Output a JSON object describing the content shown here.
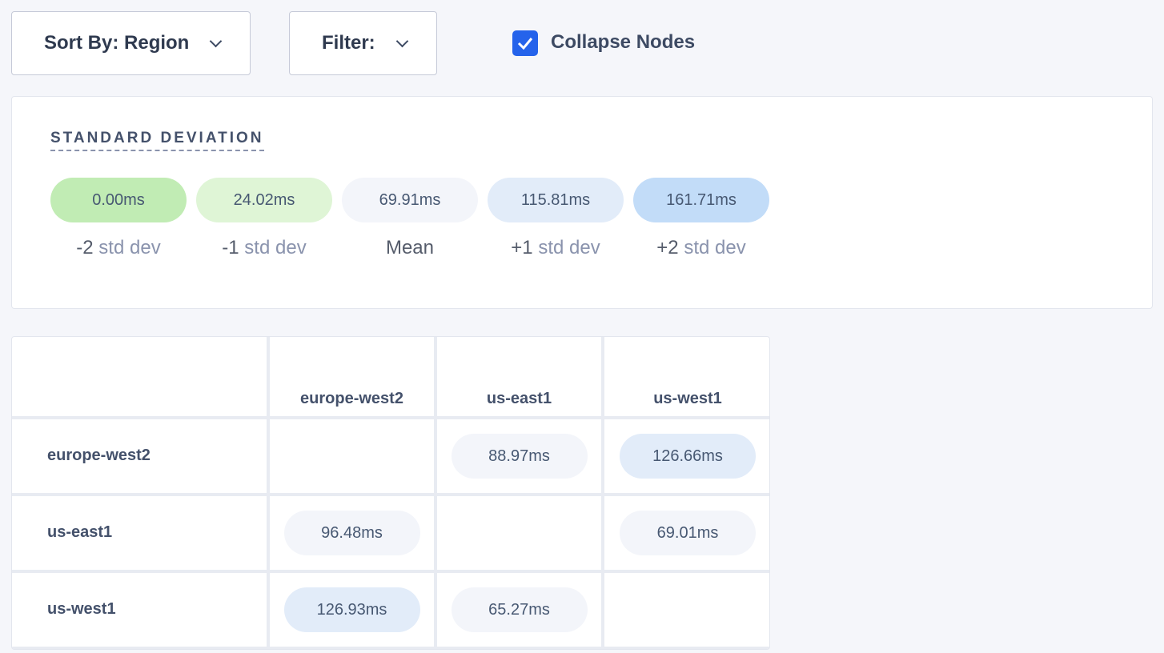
{
  "toolbar": {
    "sort_label": "Sort By: Region",
    "filter_label": "Filter:",
    "collapse_label": "Collapse Nodes",
    "collapse_checked": true
  },
  "std_dev": {
    "title": "STANDARD DEVIATION",
    "items": [
      {
        "value": "0.00ms",
        "prefix": "-2",
        "suffix": " std dev",
        "color": "#c1ecb4"
      },
      {
        "value": "24.02ms",
        "prefix": "-1",
        "suffix": " std dev",
        "color": "#dff5d6"
      },
      {
        "value": "69.91ms",
        "prefix": "Mean",
        "suffix": "",
        "color": "#f3f5fa"
      },
      {
        "value": "115.81ms",
        "prefix": "+1",
        "suffix": " std dev",
        "color": "#e2ecf9"
      },
      {
        "value": "161.71ms",
        "prefix": "+2",
        "suffix": " std dev",
        "color": "#c2dcf8"
      }
    ]
  },
  "matrix": {
    "columns": [
      "europe-west2",
      "us-east1",
      "us-west1"
    ],
    "rows": [
      {
        "label": "europe-west2",
        "cells": [
          null,
          {
            "value": "88.97ms",
            "color": "#f3f5fa"
          },
          {
            "value": "126.66ms",
            "color": "#e2ecf9"
          }
        ]
      },
      {
        "label": "us-east1",
        "cells": [
          {
            "value": "96.48ms",
            "color": "#f3f5fa"
          },
          null,
          {
            "value": "69.01ms",
            "color": "#f3f5fa"
          }
        ]
      },
      {
        "label": "us-west1",
        "cells": [
          {
            "value": "126.93ms",
            "color": "#e2ecf9"
          },
          {
            "value": "65.27ms",
            "color": "#f3f5fa"
          },
          null
        ]
      }
    ]
  }
}
